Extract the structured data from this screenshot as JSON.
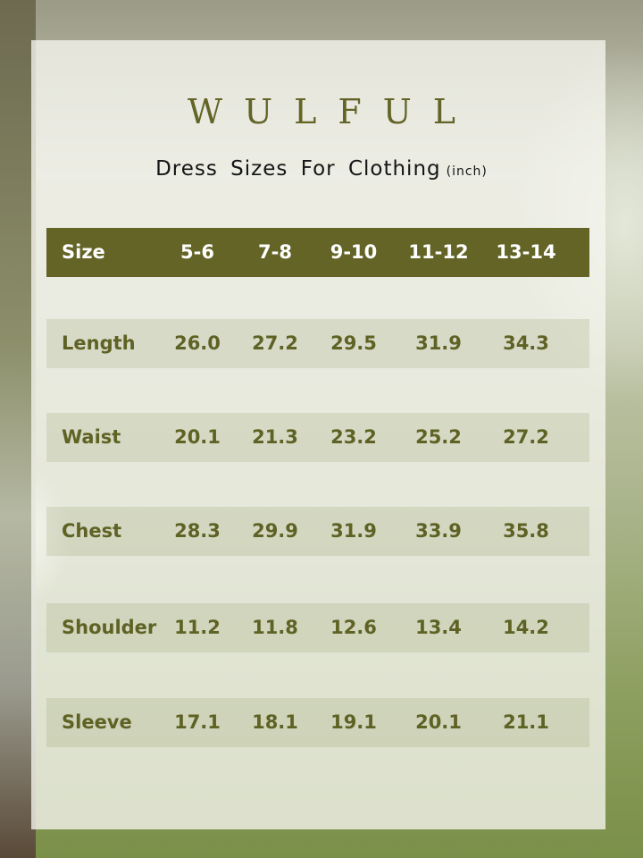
{
  "brand": "WULFUL",
  "title": "Dress Sizes For Clothing",
  "unit": "(inch)",
  "colors": {
    "accent": "#636426",
    "text": "#5e6224"
  },
  "table": {
    "header": {
      "label": "Size",
      "values": [
        "5-6",
        "7-8",
        "9-10",
        "11-12",
        "13-14"
      ]
    },
    "rows": [
      {
        "label": "Length",
        "values": [
          "26.0",
          "27.2",
          "29.5",
          "31.9",
          "34.3"
        ]
      },
      {
        "label": "Waist",
        "values": [
          "20.1",
          "21.3",
          "23.2",
          "25.2",
          "27.2"
        ]
      },
      {
        "label": "Chest",
        "values": [
          "28.3",
          "29.9",
          "31.9",
          "33.9",
          "35.8"
        ]
      },
      {
        "label": "Shoulder",
        "values": [
          "11.2",
          "11.8",
          "12.6",
          "13.4",
          "14.2"
        ]
      },
      {
        "label": "Sleeve",
        "values": [
          "17.1",
          "18.1",
          "19.1",
          "20.1",
          "21.1"
        ]
      }
    ]
  }
}
